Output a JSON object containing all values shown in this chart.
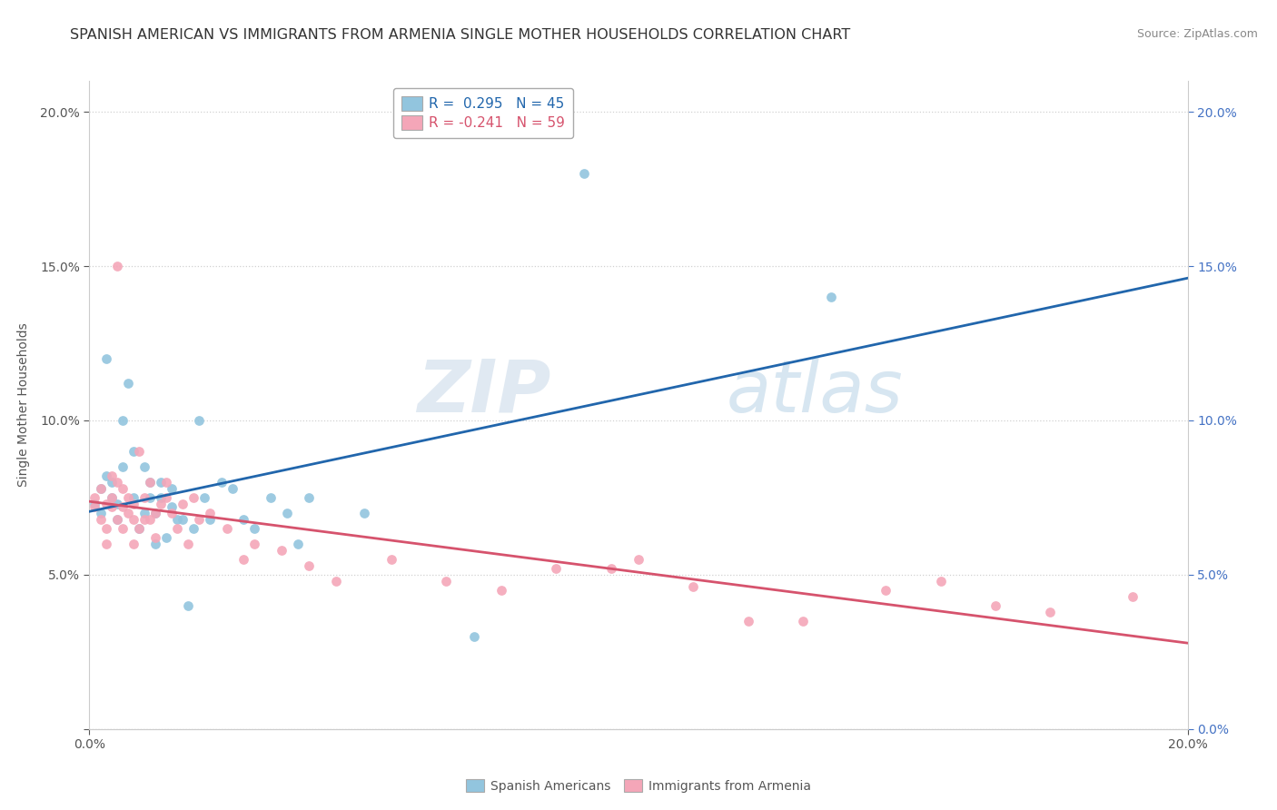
{
  "title": "SPANISH AMERICAN VS IMMIGRANTS FROM ARMENIA SINGLE MOTHER HOUSEHOLDS CORRELATION CHART",
  "source": "Source: ZipAtlas.com",
  "ylabel": "Single Mother Households",
  "xlabel": "",
  "xlim": [
    0.0,
    0.2
  ],
  "ylim": [
    0.0,
    0.21
  ],
  "watermark_line1": "ZIP",
  "watermark_line2": "atlas",
  "series1_label": "Spanish Americans",
  "series1_color": "#92c5de",
  "series1_line_color": "#2166ac",
  "series1_R": 0.295,
  "series1_N": 45,
  "series2_label": "Immigrants from Armenia",
  "series2_color": "#f4a6b8",
  "series2_line_color": "#d6536d",
  "series2_R": -0.241,
  "series2_N": 59,
  "background_color": "#ffffff",
  "grid_color": "#cccccc",
  "right_axis_color": "#4472c4",
  "title_fontsize": 11.5,
  "axis_fontsize": 10,
  "legend_fontsize": 11,
  "sa_x": [
    0.001,
    0.002,
    0.002,
    0.003,
    0.003,
    0.004,
    0.004,
    0.005,
    0.005,
    0.006,
    0.006,
    0.007,
    0.008,
    0.008,
    0.009,
    0.01,
    0.01,
    0.011,
    0.011,
    0.012,
    0.012,
    0.013,
    0.013,
    0.014,
    0.015,
    0.015,
    0.016,
    0.017,
    0.018,
    0.019,
    0.02,
    0.021,
    0.022,
    0.024,
    0.026,
    0.028,
    0.03,
    0.033,
    0.036,
    0.038,
    0.04,
    0.05,
    0.07,
    0.09,
    0.135
  ],
  "sa_y": [
    0.073,
    0.078,
    0.07,
    0.082,
    0.12,
    0.075,
    0.08,
    0.068,
    0.073,
    0.085,
    0.1,
    0.112,
    0.075,
    0.09,
    0.065,
    0.07,
    0.085,
    0.075,
    0.08,
    0.06,
    0.07,
    0.08,
    0.075,
    0.062,
    0.078,
    0.072,
    0.068,
    0.068,
    0.04,
    0.065,
    0.1,
    0.075,
    0.068,
    0.08,
    0.078,
    0.068,
    0.065,
    0.075,
    0.07,
    0.06,
    0.075,
    0.07,
    0.03,
    0.18,
    0.14
  ],
  "arm_x": [
    0.001,
    0.001,
    0.002,
    0.002,
    0.003,
    0.003,
    0.003,
    0.004,
    0.004,
    0.004,
    0.005,
    0.005,
    0.005,
    0.006,
    0.006,
    0.006,
    0.007,
    0.007,
    0.008,
    0.008,
    0.008,
    0.009,
    0.009,
    0.01,
    0.01,
    0.011,
    0.011,
    0.012,
    0.012,
    0.013,
    0.014,
    0.014,
    0.015,
    0.016,
    0.017,
    0.018,
    0.019,
    0.02,
    0.022,
    0.025,
    0.028,
    0.03,
    0.035,
    0.04,
    0.045,
    0.055,
    0.065,
    0.075,
    0.085,
    0.095,
    0.1,
    0.11,
    0.12,
    0.13,
    0.145,
    0.155,
    0.165,
    0.175,
    0.19
  ],
  "arm_y": [
    0.075,
    0.072,
    0.068,
    0.078,
    0.065,
    0.073,
    0.06,
    0.075,
    0.082,
    0.072,
    0.08,
    0.15,
    0.068,
    0.072,
    0.065,
    0.078,
    0.07,
    0.075,
    0.073,
    0.06,
    0.068,
    0.09,
    0.065,
    0.075,
    0.068,
    0.068,
    0.08,
    0.062,
    0.07,
    0.073,
    0.08,
    0.075,
    0.07,
    0.065,
    0.073,
    0.06,
    0.075,
    0.068,
    0.07,
    0.065,
    0.055,
    0.06,
    0.058,
    0.053,
    0.048,
    0.055,
    0.048,
    0.045,
    0.052,
    0.052,
    0.055,
    0.046,
    0.035,
    0.035,
    0.045,
    0.048,
    0.04,
    0.038,
    0.043
  ]
}
